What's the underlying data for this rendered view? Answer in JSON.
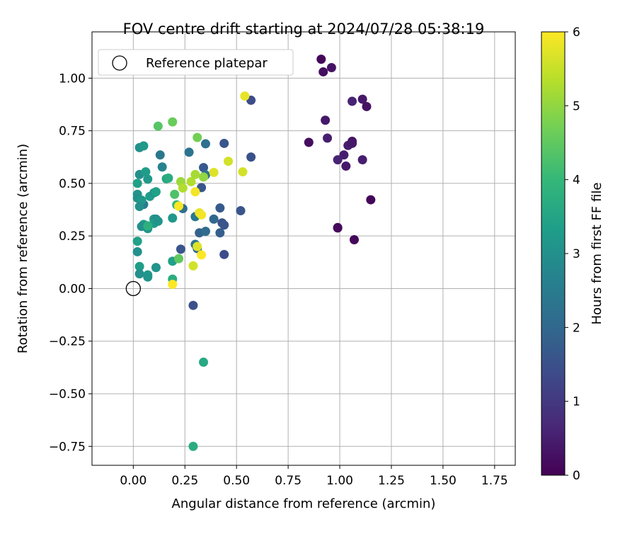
{
  "chart_data": {
    "type": "scatter",
    "title": "FOV centre drift starting at 2024/07/28 05:38:19",
    "xlabel": "Angular distance from reference (arcmin)",
    "ylabel": "Rotation from reference (arcmin)",
    "xlim": [
      -0.2,
      1.85
    ],
    "ylim": [
      -0.84,
      1.22
    ],
    "grid": true,
    "xticks": [
      "0.00",
      "0.25",
      "0.50",
      "0.75",
      "1.00",
      "1.25",
      "1.50",
      "1.75"
    ],
    "xtick_values": [
      0,
      0.25,
      0.5,
      0.75,
      1.0,
      1.25,
      1.5,
      1.75
    ],
    "yticks": [
      "−0.75",
      "−0.50",
      "−0.25",
      "0.00",
      "0.25",
      "0.50",
      "0.75",
      "1.00"
    ],
    "ytick_values": [
      -0.75,
      -0.5,
      -0.25,
      0,
      0.25,
      0.5,
      0.75,
      1.0
    ],
    "legend": {
      "label": "Reference platepar",
      "placement": "top-left"
    },
    "reference_point": {
      "x": 0.0,
      "y": 0.0
    },
    "colorbar": {
      "label": "Hours from first FF file",
      "min": 0,
      "max": 6,
      "ticks": [
        "0",
        "1",
        "2",
        "3",
        "4",
        "5",
        "6"
      ],
      "tick_values": [
        0,
        1,
        2,
        3,
        4,
        5,
        6
      ],
      "colormap": "viridis",
      "stops": [
        "#440154",
        "#482878",
        "#3e4989",
        "#31688e",
        "#26828e",
        "#1f9e89",
        "#35b779",
        "#6ece58",
        "#b5de2b",
        "#fde725"
      ]
    },
    "points": [
      {
        "x": 0.91,
        "y": 1.09,
        "t": 0.1
      },
      {
        "x": 0.96,
        "y": 1.05,
        "t": 0.3
      },
      {
        "x": 0.92,
        "y": 1.03,
        "t": 0.2
      },
      {
        "x": 1.06,
        "y": 0.89,
        "t": 0.6
      },
      {
        "x": 1.11,
        "y": 0.9,
        "t": 0.4
      },
      {
        "x": 1.13,
        "y": 0.865,
        "t": 0.3
      },
      {
        "x": 0.93,
        "y": 0.8,
        "t": 0.4
      },
      {
        "x": 0.85,
        "y": 0.695,
        "t": 0.2
      },
      {
        "x": 0.94,
        "y": 0.715,
        "t": 0.5
      },
      {
        "x": 1.04,
        "y": 0.68,
        "t": 0.5
      },
      {
        "x": 1.06,
        "y": 0.7,
        "t": 0.3
      },
      {
        "x": 1.06,
        "y": 0.69,
        "t": 0.4
      },
      {
        "x": 1.02,
        "y": 0.635,
        "t": 0.5
      },
      {
        "x": 0.99,
        "y": 0.612,
        "t": 0.6
      },
      {
        "x": 1.11,
        "y": 0.612,
        "t": 0.5
      },
      {
        "x": 1.03,
        "y": 0.582,
        "t": 0.4
      },
      {
        "x": 1.15,
        "y": 0.422,
        "t": 0.1
      },
      {
        "x": 0.99,
        "y": 0.29,
        "t": 0.05
      },
      {
        "x": 0.99,
        "y": 0.288,
        "t": 0.15
      },
      {
        "x": 1.07,
        "y": 0.232,
        "t": 0.1
      },
      {
        "x": 0.57,
        "y": 0.895,
        "t": 1.4
      },
      {
        "x": 0.44,
        "y": 0.69,
        "t": 1.6
      },
      {
        "x": 0.57,
        "y": 0.625,
        "t": 1.5
      },
      {
        "x": 0.34,
        "y": 0.575,
        "t": 1.7
      },
      {
        "x": 0.33,
        "y": 0.48,
        "t": 1.6
      },
      {
        "x": 0.52,
        "y": 0.37,
        "t": 1.6
      },
      {
        "x": 0.42,
        "y": 0.383,
        "t": 1.7
      },
      {
        "x": 0.43,
        "y": 0.312,
        "t": 1.5
      },
      {
        "x": 0.44,
        "y": 0.302,
        "t": 1.6
      },
      {
        "x": 0.42,
        "y": 0.265,
        "t": 1.8
      },
      {
        "x": 0.44,
        "y": 0.162,
        "t": 1.4
      },
      {
        "x": 0.29,
        "y": -0.08,
        "t": 1.5
      },
      {
        "x": 0.23,
        "y": 0.187,
        "t": 1.6
      },
      {
        "x": 0.32,
        "y": 0.265,
        "t": 1.9
      },
      {
        "x": 0.39,
        "y": 0.33,
        "t": 2.0
      },
      {
        "x": 0.35,
        "y": 0.688,
        "t": 2.2
      },
      {
        "x": 0.27,
        "y": 0.648,
        "t": 2.3
      },
      {
        "x": 0.35,
        "y": 0.54,
        "t": 2.3
      },
      {
        "x": 0.24,
        "y": 0.38,
        "t": 2.2
      },
      {
        "x": 0.35,
        "y": 0.272,
        "t": 2.1
      },
      {
        "x": 0.3,
        "y": 0.342,
        "t": 2.4
      },
      {
        "x": 0.3,
        "y": 0.21,
        "t": 2.3
      },
      {
        "x": 0.31,
        "y": 0.19,
        "t": 2.0
      },
      {
        "x": 0.13,
        "y": 0.635,
        "t": 2.4
      },
      {
        "x": 0.05,
        "y": 0.4,
        "t": 2.5
      },
      {
        "x": 0.14,
        "y": 0.578,
        "t": 2.7
      },
      {
        "x": 0.03,
        "y": 0.67,
        "t": 3.0
      },
      {
        "x": 0.05,
        "y": 0.678,
        "t": 3.2
      },
      {
        "x": 0.03,
        "y": 0.542,
        "t": 3.0
      },
      {
        "x": 0.06,
        "y": 0.555,
        "t": 3.3
      },
      {
        "x": 0.02,
        "y": 0.5,
        "t": 3.4
      },
      {
        "x": 0.07,
        "y": 0.52,
        "t": 3.2
      },
      {
        "x": 0.02,
        "y": 0.448,
        "t": 3.1
      },
      {
        "x": 0.02,
        "y": 0.43,
        "t": 3.0
      },
      {
        "x": 0.04,
        "y": 0.42,
        "t": 3.2
      },
      {
        "x": 0.08,
        "y": 0.438,
        "t": 3.3
      },
      {
        "x": 0.1,
        "y": 0.455,
        "t": 3.1
      },
      {
        "x": 0.11,
        "y": 0.46,
        "t": 3.4
      },
      {
        "x": 0.03,
        "y": 0.39,
        "t": 3.0
      },
      {
        "x": 0.1,
        "y": 0.33,
        "t": 3.2
      },
      {
        "x": 0.11,
        "y": 0.33,
        "t": 3.0
      },
      {
        "x": 0.1,
        "y": 0.31,
        "t": 3.3
      },
      {
        "x": 0.12,
        "y": 0.32,
        "t": 3.1
      },
      {
        "x": 0.05,
        "y": 0.305,
        "t": 3.4
      },
      {
        "x": 0.06,
        "y": 0.3,
        "t": 3.2
      },
      {
        "x": 0.04,
        "y": 0.295,
        "t": 3.0
      },
      {
        "x": 0.07,
        "y": 0.285,
        "t": 3.1
      },
      {
        "x": 0.02,
        "y": 0.225,
        "t": 3.4
      },
      {
        "x": 0.02,
        "y": 0.175,
        "t": 3.0
      },
      {
        "x": 0.03,
        "y": 0.105,
        "t": 3.3
      },
      {
        "x": 0.11,
        "y": 0.1,
        "t": 3.1
      },
      {
        "x": 0.03,
        "y": 0.07,
        "t": 3.0
      },
      {
        "x": 0.07,
        "y": 0.065,
        "t": 3.2
      },
      {
        "x": 0.07,
        "y": 0.055,
        "t": 3.1
      },
      {
        "x": 0.19,
        "y": 0.13,
        "t": 3.4
      },
      {
        "x": 0.19,
        "y": 0.335,
        "t": 3.2
      },
      {
        "x": 0.16,
        "y": 0.522,
        "t": 3.5
      },
      {
        "x": 0.17,
        "y": 0.525,
        "t": 3.7
      },
      {
        "x": 0.07,
        "y": 0.298,
        "t": 3.8
      },
      {
        "x": 0.19,
        "y": 0.045,
        "t": 3.7
      },
      {
        "x": 0.34,
        "y": -0.35,
        "t": 3.6
      },
      {
        "x": 0.29,
        "y": -0.75,
        "t": 3.7
      },
      {
        "x": 0.21,
        "y": 0.398,
        "t": 4.0
      },
      {
        "x": 0.12,
        "y": 0.772,
        "t": 4.4
      },
      {
        "x": 0.19,
        "y": 0.792,
        "t": 4.6
      },
      {
        "x": 0.31,
        "y": 0.718,
        "t": 4.7
      },
      {
        "x": 0.2,
        "y": 0.448,
        "t": 4.3
      },
      {
        "x": 0.22,
        "y": 0.142,
        "t": 4.5
      },
      {
        "x": 0.23,
        "y": 0.508,
        "t": 5.1
      },
      {
        "x": 0.28,
        "y": 0.508,
        "t": 5.3
      },
      {
        "x": 0.3,
        "y": 0.542,
        "t": 5.2
      },
      {
        "x": 0.34,
        "y": 0.53,
        "t": 5.0
      },
      {
        "x": 0.24,
        "y": 0.478,
        "t": 5.3
      },
      {
        "x": 0.46,
        "y": 0.605,
        "t": 5.6
      },
      {
        "x": 0.39,
        "y": 0.552,
        "t": 5.7
      },
      {
        "x": 0.53,
        "y": 0.555,
        "t": 5.6
      },
      {
        "x": 0.54,
        "y": 0.915,
        "t": 5.8
      },
      {
        "x": 0.3,
        "y": 0.46,
        "t": 5.9
      },
      {
        "x": 0.22,
        "y": 0.392,
        "t": 6.0
      },
      {
        "x": 0.32,
        "y": 0.36,
        "t": 5.8
      },
      {
        "x": 0.33,
        "y": 0.35,
        "t": 5.9
      },
      {
        "x": 0.31,
        "y": 0.2,
        "t": 5.7
      },
      {
        "x": 0.33,
        "y": 0.16,
        "t": 6.0
      },
      {
        "x": 0.29,
        "y": 0.108,
        "t": 5.6
      },
      {
        "x": 0.19,
        "y": 0.02,
        "t": 6.0
      }
    ]
  }
}
